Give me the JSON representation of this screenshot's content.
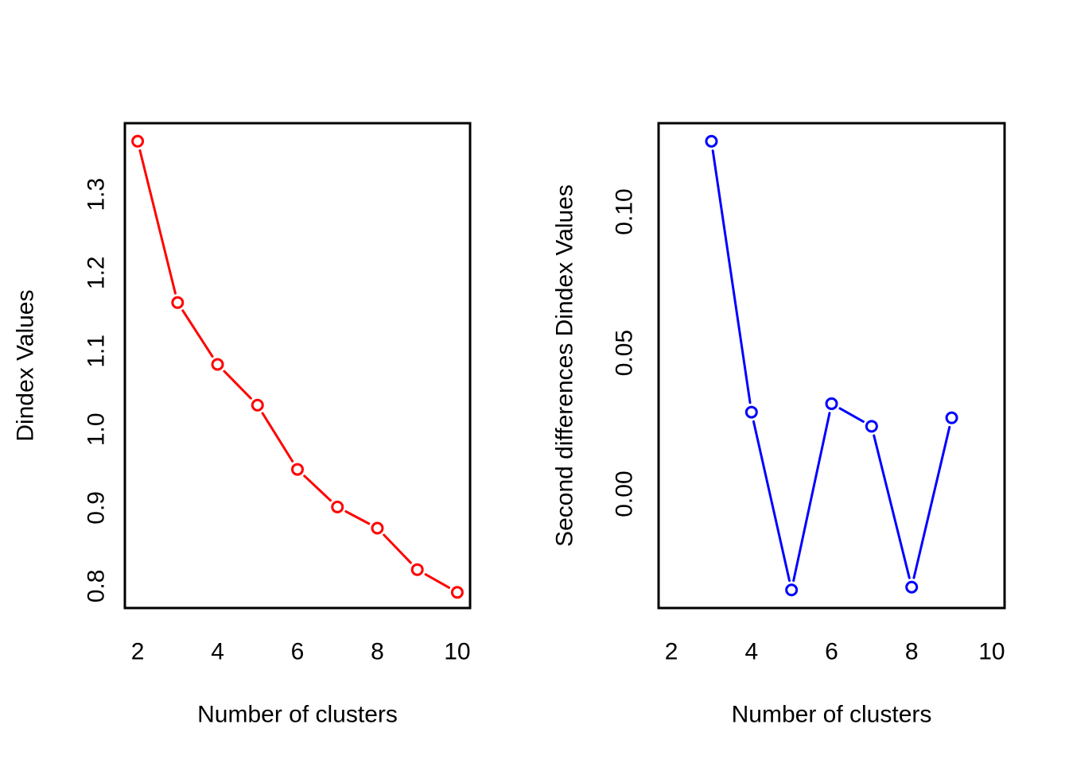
{
  "figure": {
    "background": "#FFFFFF",
    "frame_color": "#000000",
    "text_color": "#000000"
  },
  "chart_data": [
    {
      "type": "line",
      "panel": "dindex",
      "title": "",
      "xlabel": "Number of clusters",
      "ylabel": "Dindex Values",
      "x": [
        2,
        3,
        4,
        5,
        6,
        7,
        8,
        9,
        10
      ],
      "values": [
        1.368,
        1.162,
        1.083,
        1.031,
        0.949,
        0.901,
        0.874,
        0.821,
        0.792
      ],
      "x_tick_values": [
        2,
        4,
        6,
        8,
        10
      ],
      "x_tick_labels": [
        "2",
        "4",
        "6",
        "8",
        "10"
      ],
      "y_tick_values": [
        0.8,
        0.9,
        1.0,
        1.1,
        1.2,
        1.3
      ],
      "y_tick_labels": [
        "0.8",
        "0.9",
        "1.0",
        "1.1",
        "1.2",
        "1.3"
      ],
      "xlim": [
        1.68,
        10.32
      ],
      "ylim": [
        0.772,
        1.391
      ],
      "line_color": "#FF0000",
      "marker": "open-circle",
      "line_type": "b",
      "grid": false,
      "legend_position": "none"
    },
    {
      "type": "line",
      "panel": "second-differences",
      "title": "",
      "xlabel": "Number of clusters",
      "ylabel": "Second differences Dindex Values",
      "x": [
        3,
        4,
        5,
        6,
        7,
        8,
        9
      ],
      "values": [
        0.125,
        0.029,
        -0.034,
        0.032,
        0.024,
        -0.033,
        0.027
      ],
      "x_tick_values": [
        2,
        4,
        6,
        8,
        10
      ],
      "x_tick_labels": [
        "2",
        "4",
        "6",
        "8",
        "10"
      ],
      "y_tick_values": [
        0.0,
        0.05,
        0.1
      ],
      "y_tick_labels": [
        "0.00",
        "0.05",
        "0.10"
      ],
      "xlim": [
        1.68,
        10.32
      ],
      "ylim": [
        -0.0404,
        0.1314
      ],
      "line_color": "#0000FF",
      "marker": "open-circle",
      "line_type": "b",
      "grid": false,
      "legend_position": "none"
    }
  ]
}
